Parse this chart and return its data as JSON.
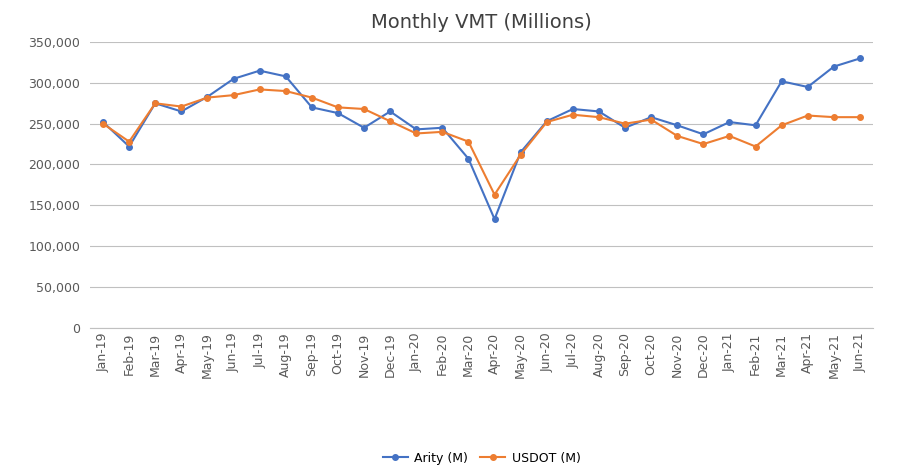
{
  "title": "Monthly VMT (Millions)",
  "labels": [
    "Jan-19",
    "Feb-19",
    "Mar-19",
    "Apr-19",
    "May-19",
    "Jun-19",
    "Jul-19",
    "Aug-19",
    "Sep-19",
    "Oct-19",
    "Nov-19",
    "Dec-19",
    "Jan-20",
    "Feb-20",
    "Mar-20",
    "Apr-20",
    "May-20",
    "Jun-20",
    "Jul-20",
    "Aug-20",
    "Sep-20",
    "Oct-20",
    "Nov-20",
    "Dec-20",
    "Jan-21",
    "Feb-21",
    "Mar-21",
    "Apr-21",
    "May-21",
    "Jun-21"
  ],
  "arity": [
    252000,
    222000,
    275000,
    265000,
    283000,
    305000,
    315000,
    308000,
    270000,
    263000,
    245000,
    265000,
    243000,
    245000,
    207000,
    133000,
    215000,
    253000,
    268000,
    265000,
    245000,
    258000,
    248000,
    237000,
    252000,
    248000,
    302000,
    295000,
    320000,
    330000
  ],
  "usdot": [
    250000,
    228000,
    275000,
    271000,
    282000,
    285000,
    292000,
    290000,
    282000,
    270000,
    268000,
    253000,
    238000,
    240000,
    228000,
    163000,
    212000,
    252000,
    261000,
    258000,
    250000,
    255000,
    235000,
    225000,
    235000,
    222000,
    248000,
    260000,
    258000,
    258000
  ],
  "arity_color": "#4472C4",
  "usdot_color": "#ED7D31",
  "ylim": [
    0,
    350000
  ],
  "yticks": [
    0,
    50000,
    100000,
    150000,
    200000,
    250000,
    300000,
    350000
  ],
  "ytick_labels": [
    "0",
    "50,000",
    "100,000",
    "150,000",
    "200,000",
    "250,000",
    "300,000",
    "350,000"
  ],
  "legend_arity": "Arity (M)",
  "legend_usdot": "USDOT (M)",
  "figure_bg": "#ffffff",
  "plot_bg": "#ffffff",
  "grid_color": "#C0C0C0",
  "marker_size": 4,
  "linewidth": 1.5,
  "title_fontsize": 14,
  "tick_fontsize": 9,
  "legend_fontsize": 9
}
